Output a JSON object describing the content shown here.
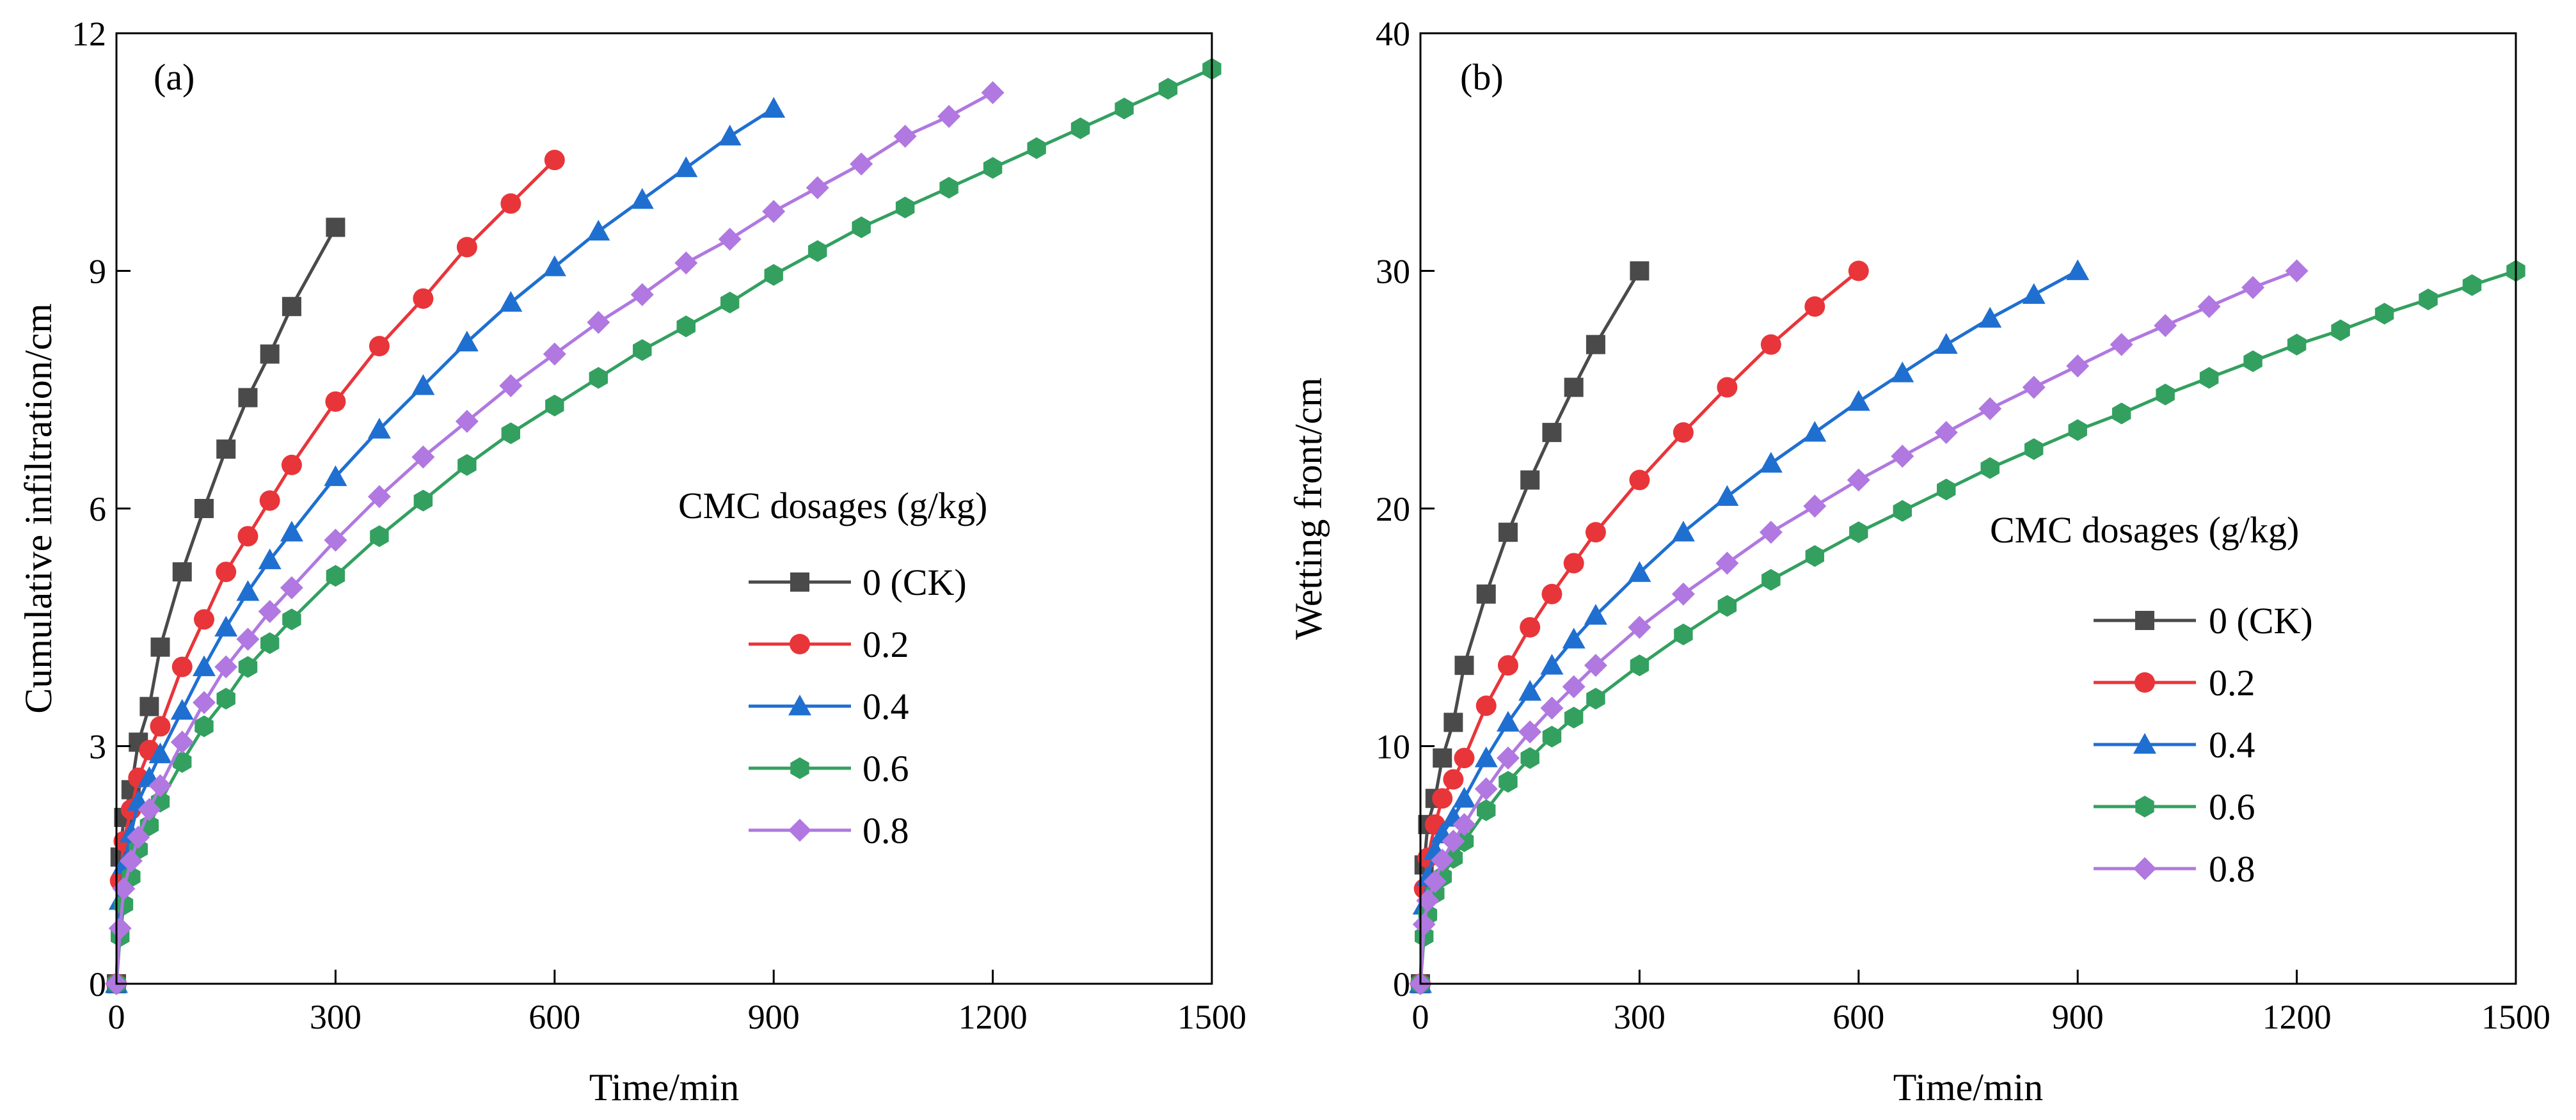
{
  "chart_data": [
    {
      "type": "line",
      "panel_label": "(a)",
      "xlabel": "Time/min",
      "ylabel": "Cumulative infiltration/cm",
      "xlim": [
        0,
        1500
      ],
      "ylim": [
        0,
        12
      ],
      "xticks": [
        "0",
        "300",
        "600",
        "900",
        "1200",
        "1500"
      ],
      "yticks": [
        "0",
        "3",
        "6",
        "9",
        "12"
      ],
      "legend_title": "CMC dosages (g/kg)",
      "legend_position": "center-right",
      "series": [
        {
          "name": "0 (CK)",
          "color": "#4a4a4a",
          "marker": "square",
          "x": [
            0,
            5,
            10,
            20,
            30,
            45,
            60,
            90,
            120,
            150,
            180,
            210,
            240,
            300
          ],
          "y": [
            0,
            1.6,
            2.1,
            2.45,
            3.05,
            3.5,
            4.25,
            5.2,
            6.0,
            6.75,
            7.4,
            7.95,
            8.55,
            9.55
          ]
        },
        {
          "name": "0.2",
          "color": "#e8353a",
          "marker": "circle",
          "x": [
            0,
            5,
            10,
            20,
            30,
            45,
            60,
            90,
            120,
            150,
            180,
            210,
            240,
            300,
            360,
            420,
            480,
            540,
            600
          ],
          "y": [
            0,
            1.3,
            1.8,
            2.2,
            2.6,
            2.95,
            3.25,
            4.0,
            4.6,
            5.2,
            5.65,
            6.1,
            6.55,
            7.35,
            8.05,
            8.65,
            9.3,
            9.85,
            10.4
          ]
        },
        {
          "name": "0.4",
          "color": "#1f6fd1",
          "marker": "triangle",
          "x": [
            0,
            5,
            10,
            20,
            30,
            45,
            60,
            90,
            120,
            150,
            180,
            210,
            240,
            300,
            360,
            420,
            480,
            540,
            600,
            660,
            720,
            780,
            840,
            900
          ],
          "y": [
            0,
            1.05,
            1.5,
            1.9,
            2.3,
            2.6,
            2.9,
            3.45,
            4.0,
            4.5,
            4.95,
            5.35,
            5.7,
            6.4,
            7.0,
            7.55,
            8.1,
            8.6,
            9.05,
            9.5,
            9.9,
            10.3,
            10.7,
            11.05
          ]
        },
        {
          "name": "0.6",
          "color": "#33a060",
          "marker": "hexagon",
          "x": [
            0,
            5,
            10,
            20,
            30,
            45,
            60,
            90,
            120,
            150,
            180,
            210,
            240,
            300,
            360,
            420,
            480,
            540,
            600,
            660,
            720,
            780,
            840,
            900,
            960,
            1020,
            1080,
            1140,
            1200,
            1260,
            1320,
            1380,
            1440,
            1500
          ],
          "y": [
            0,
            0.6,
            1.0,
            1.35,
            1.7,
            2.0,
            2.3,
            2.8,
            3.25,
            3.6,
            4.0,
            4.3,
            4.6,
            5.15,
            5.65,
            6.1,
            6.55,
            6.95,
            7.3,
            7.65,
            8.0,
            8.3,
            8.6,
            8.95,
            9.25,
            9.55,
            9.8,
            10.05,
            10.3,
            10.55,
            10.8,
            11.05,
            11.3,
            11.55
          ]
        },
        {
          "name": "0.8",
          "color": "#b078e0",
          "marker": "diamond",
          "x": [
            0,
            5,
            10,
            20,
            30,
            45,
            60,
            90,
            120,
            150,
            180,
            210,
            240,
            300,
            360,
            420,
            480,
            540,
            600,
            660,
            720,
            780,
            840,
            900,
            960,
            1020,
            1080,
            1140,
            1200
          ],
          "y": [
            0,
            0.7,
            1.2,
            1.55,
            1.85,
            2.2,
            2.5,
            3.05,
            3.55,
            4.0,
            4.35,
            4.7,
            5.0,
            5.6,
            6.15,
            6.65,
            7.1,
            7.55,
            7.95,
            8.35,
            8.7,
            9.1,
            9.4,
            9.75,
            10.05,
            10.35,
            10.7,
            10.95,
            11.25
          ]
        }
      ]
    },
    {
      "type": "line",
      "panel_label": "(b)",
      "xlabel": "Time/min",
      "ylabel": "Wetting front/cm",
      "xlim": [
        0,
        1500
      ],
      "ylim": [
        0,
        40
      ],
      "xticks": [
        "0",
        "300",
        "600",
        "900",
        "1200",
        "1500"
      ],
      "yticks": [
        "0",
        "10",
        "20",
        "30",
        "40"
      ],
      "legend_title": "CMC dosages (g/kg)",
      "legend_position": "center-right",
      "series": [
        {
          "name": "0 (CK)",
          "color": "#4a4a4a",
          "marker": "square",
          "x": [
            0,
            5,
            10,
            20,
            30,
            45,
            60,
            90,
            120,
            150,
            180,
            210,
            240,
            300
          ],
          "y": [
            0,
            5.0,
            6.7,
            7.8,
            9.5,
            11.0,
            13.4,
            16.4,
            19.0,
            21.2,
            23.2,
            25.1,
            26.9,
            30.0
          ]
        },
        {
          "name": "0.2",
          "color": "#e8353a",
          "marker": "circle",
          "x": [
            0,
            5,
            10,
            20,
            30,
            45,
            60,
            90,
            120,
            150,
            180,
            210,
            240,
            300,
            360,
            420,
            480,
            540,
            600
          ],
          "y": [
            0,
            4.0,
            5.3,
            6.7,
            7.8,
            8.6,
            9.5,
            11.7,
            13.4,
            15.0,
            16.4,
            17.7,
            19.0,
            21.2,
            23.2,
            25.1,
            26.9,
            28.5,
            30.0
          ]
        },
        {
          "name": "0.4",
          "color": "#1f6fd1",
          "marker": "triangle",
          "x": [
            0,
            5,
            10,
            20,
            30,
            45,
            60,
            90,
            120,
            150,
            180,
            210,
            240,
            300,
            360,
            420,
            480,
            540,
            600,
            660,
            720,
            780,
            840,
            900
          ],
          "y": [
            0,
            3.3,
            4.5,
            5.6,
            6.3,
            7.0,
            7.8,
            9.5,
            11.0,
            12.3,
            13.4,
            14.5,
            15.5,
            17.3,
            19.0,
            20.5,
            21.9,
            23.2,
            24.5,
            25.7,
            26.9,
            28.0,
            29.0,
            30.0
          ]
        },
        {
          "name": "0.6",
          "color": "#33a060",
          "marker": "hexagon",
          "x": [
            0,
            5,
            10,
            20,
            30,
            45,
            60,
            90,
            120,
            150,
            180,
            210,
            240,
            300,
            360,
            420,
            480,
            540,
            600,
            660,
            720,
            780,
            840,
            900,
            960,
            1020,
            1080,
            1140,
            1200,
            1260,
            1320,
            1380,
            1440,
            1500
          ],
          "y": [
            0,
            2.0,
            2.9,
            3.8,
            4.5,
            5.3,
            6.0,
            7.3,
            8.5,
            9.5,
            10.4,
            11.2,
            12.0,
            13.4,
            14.7,
            15.9,
            17.0,
            18.0,
            19.0,
            19.9,
            20.8,
            21.7,
            22.5,
            23.3,
            24.0,
            24.8,
            25.5,
            26.2,
            26.9,
            27.5,
            28.2,
            28.8,
            29.4,
            30.0
          ]
        },
        {
          "name": "0.8",
          "color": "#b078e0",
          "marker": "diamond",
          "x": [
            0,
            5,
            10,
            20,
            30,
            45,
            60,
            90,
            120,
            150,
            180,
            210,
            240,
            300,
            360,
            420,
            480,
            540,
            600,
            660,
            720,
            780,
            840,
            900,
            960,
            1020,
            1080,
            1140,
            1200
          ],
          "y": [
            0,
            2.5,
            3.5,
            4.3,
            5.2,
            6.0,
            6.7,
            8.2,
            9.5,
            10.6,
            11.6,
            12.5,
            13.4,
            15.0,
            16.4,
            17.7,
            19.0,
            20.1,
            21.2,
            22.2,
            23.2,
            24.2,
            25.1,
            26.0,
            26.9,
            27.7,
            28.5,
            29.3,
            30.0
          ]
        }
      ]
    }
  ]
}
